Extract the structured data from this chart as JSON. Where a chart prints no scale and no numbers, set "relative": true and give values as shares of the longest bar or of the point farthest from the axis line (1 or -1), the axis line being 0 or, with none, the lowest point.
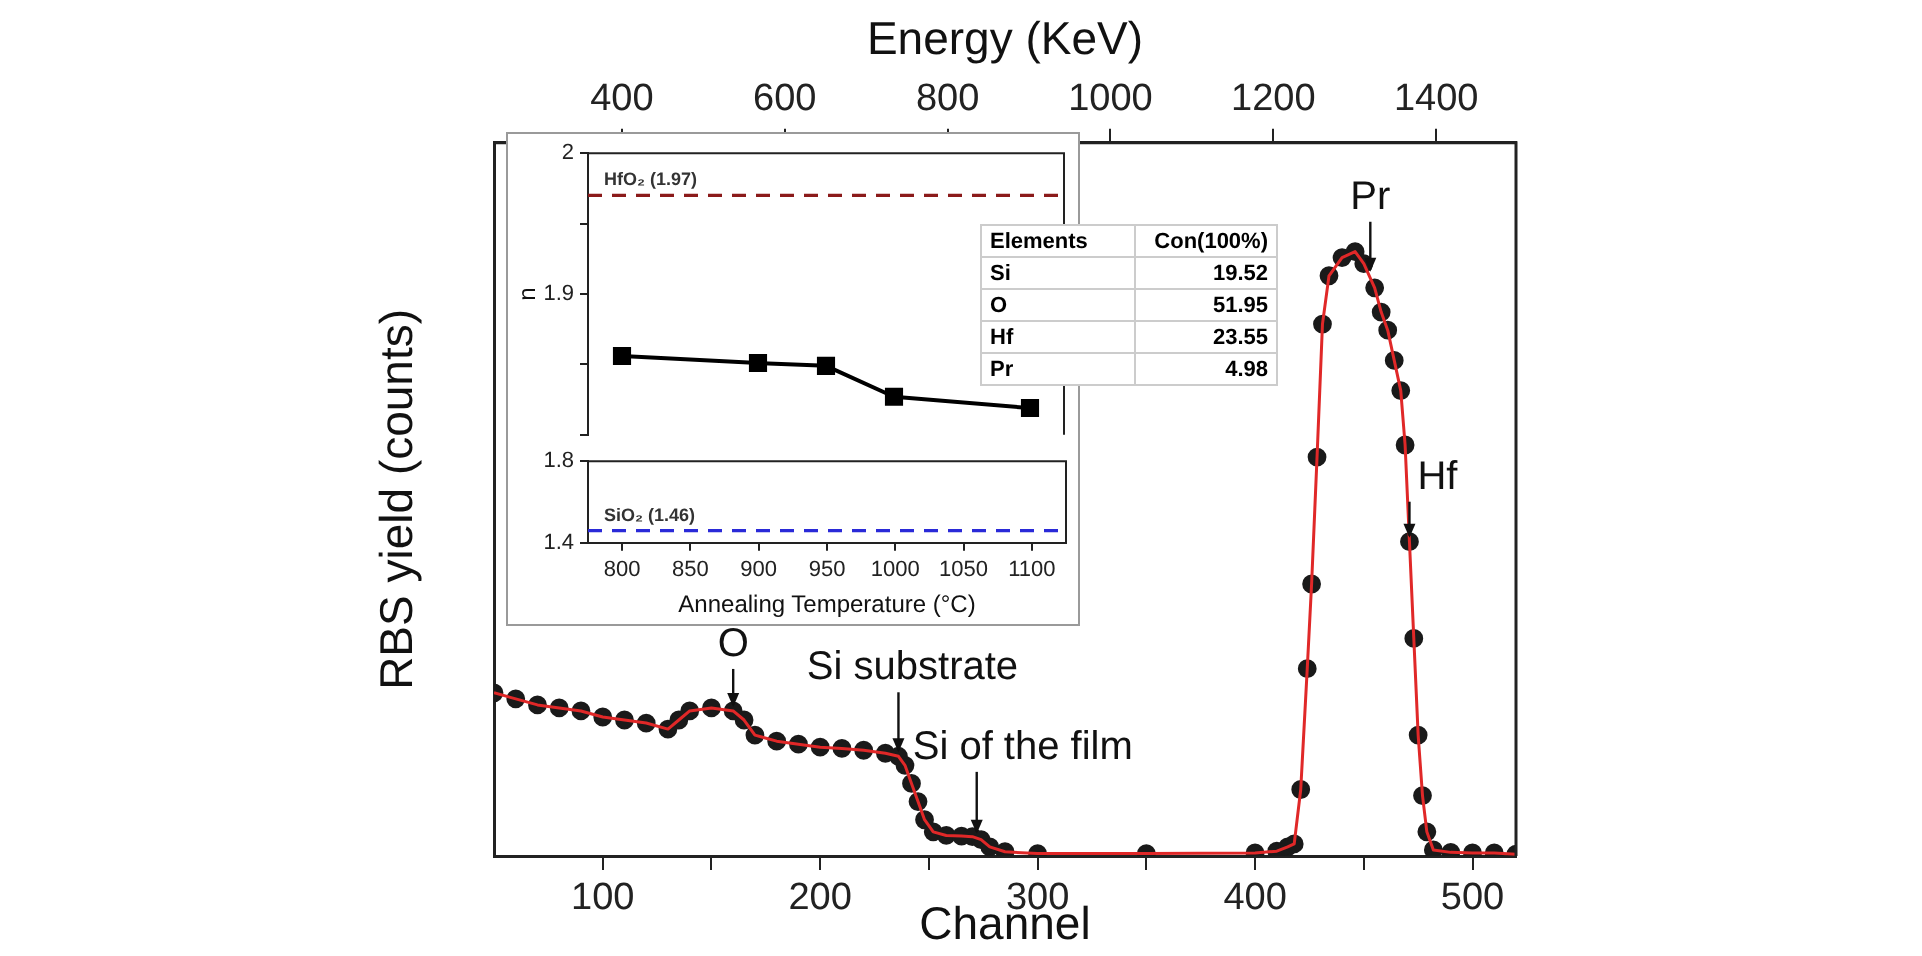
{
  "chart_data": [
    {
      "type": "line",
      "xlabel": "Channel",
      "ylabel": "RBS yield (counts)",
      "x2label": "Energy (KeV)",
      "relative": true,
      "marker": "circle",
      "xlim": [
        50,
        520
      ],
      "xticks": [
        100,
        {
          "value": 150,
          "label": null
        },
        200,
        {
          "value": 250,
          "label": null
        },
        300,
        {
          "value": 350,
          "label": null
        },
        400,
        {
          "value": 450,
          "label": null
        },
        500
      ],
      "x2lim": [
        243,
        1498
      ],
      "x2ticks": [
        400,
        600,
        800,
        1000,
        1200,
        1400
      ],
      "x": [
        50,
        60,
        70,
        80,
        90,
        100,
        110,
        120,
        130,
        135,
        140,
        150,
        160,
        165,
        170,
        180,
        190,
        200,
        210,
        220,
        230,
        236,
        239,
        242,
        245,
        248,
        252,
        258,
        265,
        270,
        274,
        278,
        285,
        300,
        350,
        400,
        410,
        415,
        418,
        421,
        424,
        426,
        428.5,
        431,
        434,
        440,
        446,
        450,
        455,
        458,
        461,
        464,
        467,
        469,
        471,
        473,
        475,
        477,
        479,
        482,
        490,
        500,
        510,
        520
      ],
      "series": [
        {
          "type": "scatter",
          "color": "#1a1a1a",
          "values": [
            0.27,
            0.26,
            0.25,
            0.245,
            0.24,
            0.23,
            0.225,
            0.22,
            0.21,
            0.225,
            0.24,
            0.245,
            0.24,
            0.225,
            0.2,
            0.19,
            0.185,
            0.18,
            0.178,
            0.175,
            0.17,
            0.165,
            0.15,
            0.12,
            0.09,
            0.06,
            0.04,
            0.034,
            0.033,
            0.032,
            0.027,
            0.015,
            0.007,
            0.004,
            0.004,
            0.005,
            0.008,
            0.015,
            0.02,
            0.11,
            0.31,
            0.45,
            0.66,
            0.88,
            0.96,
            0.99,
            1,
            0.98,
            0.94,
            0.9,
            0.87,
            0.82,
            0.77,
            0.68,
            0.52,
            0.36,
            0.2,
            0.1,
            0.04,
            0.01,
            0.006,
            0.005,
            0.005,
            0.003
          ]
        },
        {
          "type": "line",
          "color": "#e02828",
          "marker": "none",
          "values": [
            0.27,
            0.26,
            0.25,
            0.245,
            0.24,
            0.23,
            0.225,
            0.22,
            0.21,
            0.225,
            0.24,
            0.245,
            0.24,
            0.225,
            0.2,
            0.19,
            0.185,
            0.18,
            0.178,
            0.175,
            0.17,
            0.165,
            0.15,
            0.12,
            0.09,
            0.06,
            0.04,
            0.034,
            0.033,
            0.032,
            0.027,
            0.015,
            0.007,
            0.004,
            0.004,
            0.005,
            0.008,
            0.015,
            0.02,
            0.11,
            0.31,
            0.45,
            0.66,
            0.88,
            0.96,
            0.99,
            1,
            0.98,
            0.94,
            0.9,
            0.87,
            0.82,
            0.77,
            0.68,
            0.52,
            0.36,
            0.2,
            0.1,
            0.04,
            0.01,
            0.006,
            0.005,
            0.005,
            0.003
          ]
        }
      ],
      "annotations": [
        {
          "text": "O",
          "x": 160,
          "y": 0.24
        },
        {
          "text": "Si substrate",
          "x": 236,
          "y": 0.165
        },
        {
          "text": "Si of the film",
          "x": 272,
          "y": 0.03
        },
        {
          "text": "Pr",
          "x": 453,
          "y": 0.96
        },
        {
          "text": "Hf",
          "x": 471,
          "y": 0.52
        }
      ]
    },
    {
      "type": "line",
      "ylabel": "n",
      "tick_labels": "y",
      "marker": "square",
      "xlim": [
        775,
        1125
      ],
      "ylim": [
        1.8,
        2.0
      ],
      "yticks": [
        {
          "value": 1.8,
          "label": null
        },
        {
          "value": 1.85,
          "label": null
        },
        1.9,
        {
          "value": 1.95,
          "label": null
        },
        2.0
      ],
      "x": [
        800,
        900,
        950,
        1000,
        1100
      ],
      "series": [
        {
          "color": "#000000",
          "values": [
            1.856,
            1.851,
            1.849,
            1.827,
            1.819
          ]
        }
      ],
      "ref_lines": [
        {
          "axis": "y",
          "value": 1.97,
          "label": "HfO₂ (1.97)",
          "color": "#8b1a1a",
          "line_style": "dashed"
        }
      ]
    },
    {
      "type": "line",
      "xlabel": "Annealing Temperature (°C)",
      "xlim": [
        775,
        1125
      ],
      "xticks": [
        800,
        850,
        900,
        950,
        1000,
        1050,
        1100
      ],
      "ylim": [
        1.4,
        1.8
      ],
      "yticks": [
        1.4,
        1.8
      ],
      "ref_lines": [
        {
          "axis": "y",
          "value": 1.46,
          "label": "SiO₂ (1.46)",
          "color": "#2a2ad8",
          "line_style": "dashed"
        }
      ]
    },
    {
      "type": "other",
      "annotations": [
        "Elements",
        "Con(100%)",
        "Si",
        "19.52",
        "O",
        "51.95",
        "Hf",
        "23.55",
        "Pr",
        "4.98"
      ]
    }
  ]
}
